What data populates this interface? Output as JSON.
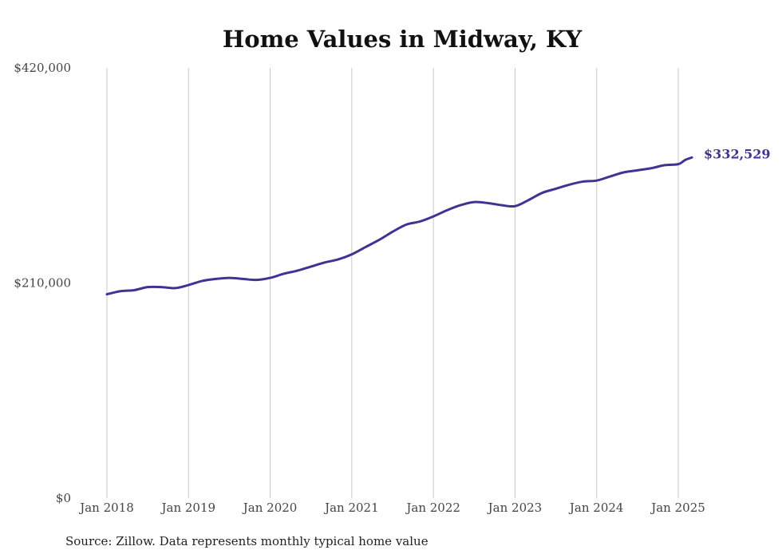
{
  "chart_data": {
    "type": "line",
    "title": "Home Values in Midway, KY",
    "source": "Source: Zillow. Data represents monthly typical home value",
    "ylim": [
      0,
      420000
    ],
    "yticks": [
      {
        "value": 0,
        "label": "$0"
      },
      {
        "value": 210000,
        "label": "$210,000"
      },
      {
        "value": 420000,
        "label": "$420,000"
      }
    ],
    "xticks": [
      {
        "value": "2018-01",
        "label": "Jan 2018"
      },
      {
        "value": "2019-01",
        "label": "Jan 2019"
      },
      {
        "value": "2020-01",
        "label": "Jan 2020"
      },
      {
        "value": "2021-01",
        "label": "Jan 2021"
      },
      {
        "value": "2022-01",
        "label": "Jan 2022"
      },
      {
        "value": "2023-01",
        "label": "Jan 2023"
      },
      {
        "value": "2024-01",
        "label": "Jan 2024"
      },
      {
        "value": "2025-01",
        "label": "Jan 2025"
      }
    ],
    "grid": {
      "vertical": true,
      "horizontal": false
    },
    "line_color": "#3d3494",
    "end_label": "$332,529",
    "series": [
      {
        "x": [
          "2018-01",
          "2018-03",
          "2018-05",
          "2018-07",
          "2018-09",
          "2018-11",
          "2019-01",
          "2019-03",
          "2019-05",
          "2019-07",
          "2019-09",
          "2019-11",
          "2020-01",
          "2020-03",
          "2020-05",
          "2020-07",
          "2020-09",
          "2020-11",
          "2021-01",
          "2021-03",
          "2021-05",
          "2021-07",
          "2021-09",
          "2021-11",
          "2022-01",
          "2022-03",
          "2022-05",
          "2022-07",
          "2022-09",
          "2022-11",
          "2023-01",
          "2023-03",
          "2023-05",
          "2023-07",
          "2023-09",
          "2023-11",
          "2024-01",
          "2024-03",
          "2024-05",
          "2024-07",
          "2024-09",
          "2024-11",
          "2025-01",
          "2025-02",
          "2025-03"
        ],
        "y": [
          199000,
          202000,
          203000,
          206000,
          206000,
          205000,
          208000,
          212000,
          214000,
          215000,
          214000,
          213000,
          215000,
          219000,
          222000,
          226000,
          230000,
          233000,
          238000,
          245000,
          252000,
          260000,
          267000,
          270000,
          275000,
          281000,
          286000,
          289000,
          288000,
          286000,
          285000,
          291000,
          298000,
          302000,
          306000,
          309000,
          310000,
          314000,
          318000,
          320000,
          322000,
          325000,
          326000,
          330000,
          332529
        ]
      }
    ]
  }
}
